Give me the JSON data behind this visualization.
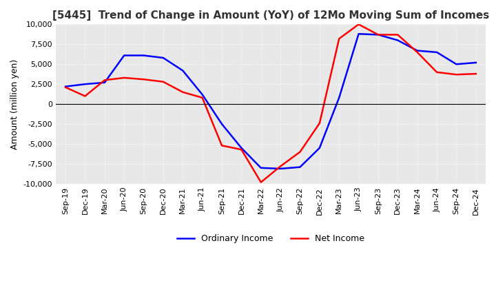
{
  "title": "[5445]  Trend of Change in Amount (YoY) of 12Mo Moving Sum of Incomes",
  "ylabel": "Amount (million yen)",
  "ylim": [
    -10000,
    10000
  ],
  "yticks": [
    -10000,
    -7500,
    -5000,
    -2500,
    0,
    2500,
    5000,
    7500,
    10000
  ],
  "legend_labels": [
    "Ordinary Income",
    "Net Income"
  ],
  "line_colors": [
    "#0000ff",
    "#ff0000"
  ],
  "x_labels": [
    "Sep-19",
    "Dec-19",
    "Mar-20",
    "Jun-20",
    "Sep-20",
    "Dec-20",
    "Mar-21",
    "Jun-21",
    "Sep-21",
    "Dec-21",
    "Mar-22",
    "Jun-22",
    "Sep-22",
    "Dec-22",
    "Mar-23",
    "Jun-23",
    "Sep-23",
    "Dec-23",
    "Mar-24",
    "Jun-24",
    "Sep-24",
    "Dec-24"
  ],
  "ordinary_income": [
    2200,
    2500,
    2700,
    6100,
    6100,
    5800,
    4200,
    1200,
    -2500,
    -5500,
    -8000,
    -8100,
    -7900,
    -5500,
    800,
    8800,
    8700,
    8000,
    6700,
    6500,
    5000,
    5200
  ],
  "net_income": [
    2100,
    1000,
    3000,
    3300,
    3100,
    2800,
    1500,
    800,
    -5200,
    -5700,
    -9800,
    -7800,
    -6000,
    -2400,
    8200,
    10000,
    8700,
    8700,
    6500,
    4000,
    3700,
    3800
  ],
  "background_color": "#ffffff",
  "plot_bg_color": "#e8e8e8",
  "grid_color": "#ffffff",
  "title_fontsize": 11,
  "label_fontsize": 9,
  "tick_fontsize": 8
}
